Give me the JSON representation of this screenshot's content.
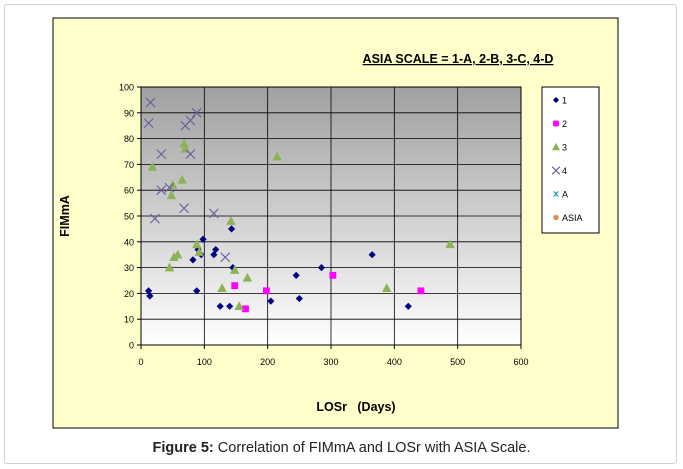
{
  "caption": {
    "label": "Figure 5:",
    "text": "Correlation of FIMmA and LOSr with ASIA Scale."
  },
  "colors": {
    "chart_background": "#FFFFCC",
    "plot_gradient_top": "#A0A0A0",
    "plot_gradient_bottom": "#FFFFFF",
    "series_1": "#000080",
    "series_2": "#FF00FF",
    "series_3": "#8DB356",
    "series_4": "#6A5A9E",
    "series_A": "#2E9BB8",
    "series_ASIA": "#E08A4A"
  },
  "chart_data": {
    "type": "scatter",
    "title": "ASIA SCALE = 1-A, 2-B, 3-C, 4-D",
    "xlabel": "LOSr   (Days)",
    "ylabel": "FIMmA",
    "xlim": [
      0,
      600
    ],
    "ylim": [
      0,
      100
    ],
    "x_ticks": [
      0,
      100,
      200,
      300,
      400,
      500,
      600
    ],
    "y_ticks": [
      0,
      10,
      20,
      30,
      40,
      50,
      60,
      70,
      80,
      90,
      100
    ],
    "grid": true,
    "legend_position": "right",
    "series": [
      {
        "name": "1",
        "marker": "diamond",
        "color": "#000080",
        "points": [
          [
            12,
            21
          ],
          [
            14,
            19
          ],
          [
            82,
            33
          ],
          [
            88,
            21
          ],
          [
            90,
            37
          ],
          [
            95,
            35
          ],
          [
            98,
            41
          ],
          [
            115,
            35
          ],
          [
            118,
            37
          ],
          [
            125,
            15
          ],
          [
            140,
            15
          ],
          [
            143,
            45
          ],
          [
            145,
            30
          ],
          [
            205,
            17
          ],
          [
            245,
            27
          ],
          [
            250,
            18
          ],
          [
            285,
            30
          ],
          [
            365,
            35
          ],
          [
            422,
            15
          ]
        ]
      },
      {
        "name": "2",
        "marker": "square",
        "color": "#FF00FF",
        "points": [
          [
            148,
            23
          ],
          [
            165,
            14
          ],
          [
            198,
            21
          ],
          [
            303,
            27
          ],
          [
            442,
            21
          ]
        ]
      },
      {
        "name": "3",
        "marker": "triangle",
        "color": "#8DB356",
        "points": [
          [
            18,
            69
          ],
          [
            45,
            30
          ],
          [
            48,
            58
          ],
          [
            50,
            62
          ],
          [
            52,
            34
          ],
          [
            58,
            35
          ],
          [
            65,
            64
          ],
          [
            68,
            78
          ],
          [
            70,
            76
          ],
          [
            88,
            39
          ],
          [
            92,
            36
          ],
          [
            128,
            22
          ],
          [
            142,
            48
          ],
          [
            148,
            29
          ],
          [
            155,
            15
          ],
          [
            168,
            26
          ],
          [
            215,
            73
          ],
          [
            388,
            22
          ],
          [
            488,
            39
          ]
        ]
      },
      {
        "name": "4",
        "marker": "x",
        "color": "#6A5A9E",
        "points": [
          [
            12,
            86
          ],
          [
            15,
            94
          ],
          [
            22,
            49
          ],
          [
            32,
            74
          ],
          [
            32,
            60
          ],
          [
            45,
            61
          ],
          [
            68,
            53
          ],
          [
            70,
            85
          ],
          [
            78,
            74
          ],
          [
            78,
            87
          ],
          [
            88,
            90
          ],
          [
            115,
            51
          ],
          [
            133,
            34
          ]
        ]
      },
      {
        "name": "A",
        "marker": "asterisk",
        "color": "#2E9BB8",
        "points": []
      },
      {
        "name": "ASIA",
        "marker": "circle",
        "color": "#E08A4A",
        "points": []
      }
    ]
  }
}
